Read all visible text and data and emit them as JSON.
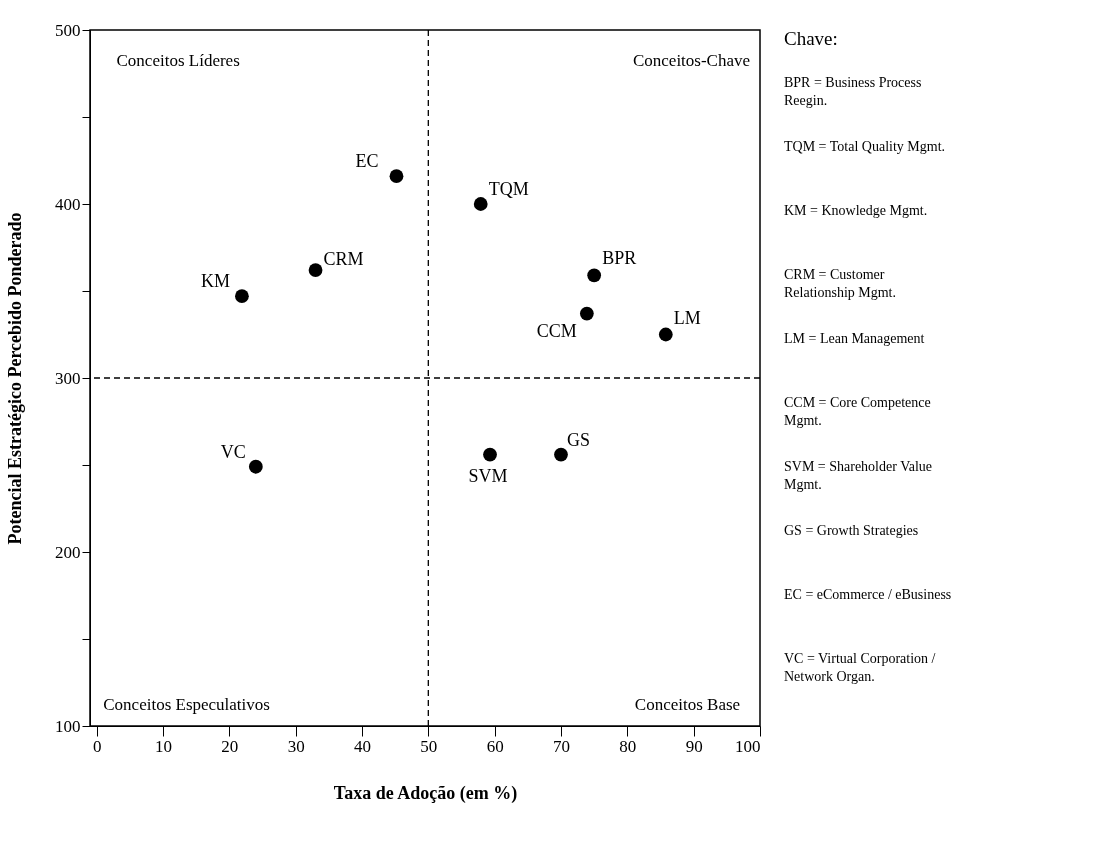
{
  "chart_data": {
    "type": "scatter",
    "xlabel": "Taxa de Adoção (em %)",
    "ylabel": "Potencial Estratégico Percebido Ponderado",
    "x": [
      45.2,
      57.9,
      33,
      21.9,
      75,
      73.9,
      85.8,
      24,
      59.3,
      70
    ],
    "values": [
      416,
      400,
      362,
      347,
      359,
      337,
      325,
      249,
      256,
      256
    ],
    "value_labels": [
      "EC",
      "TQM",
      "CRM",
      "KM",
      "BPR",
      "CCM",
      "LM",
      "VC",
      "SVM",
      "GS"
    ],
    "color": "#000000",
    "marker": "circle",
    "xlim": [
      -1,
      100
    ],
    "xticks": [
      0,
      10,
      20,
      30,
      40,
      50,
      60,
      70,
      80,
      90,
      100
    ],
    "ylim": [
      100,
      500
    ],
    "yticks": [
      100,
      {
        "value": 150,
        "label": null
      },
      200,
      {
        "value": 250,
        "label": null
      },
      300,
      {
        "value": 350,
        "label": null
      },
      400,
      {
        "value": 450,
        "label": null
      },
      500
    ],
    "grid": false,
    "ref_lines": [
      {
        "axis": "x",
        "value": 50,
        "label": null,
        "line_style": "dashed",
        "color": "#000000"
      },
      {
        "axis": "y",
        "value": 300,
        "label": null,
        "line_style": "dashed",
        "color": "#000000"
      }
    ],
    "annotations": [
      "Conceitos Líderes",
      "Conceitos-Chave",
      "Conceitos Especulativos",
      "Conceitos Base",
      "Chave:",
      "BPR = Business Process Reegin.",
      "TQM = Total Quality Mgmt.",
      "KM = Knowledge Mgmt.",
      "CRM = Customer Relationship Mgmt.",
      "LM = Lean Management",
      "CCM = Core Competence Mgmt.",
      "SVM = Shareholder Value Mgmt.",
      "GS = Growth Strategies",
      "EC = eCommerce / eBusiness",
      "VC = Virtual Corporation / Network Organ."
    ]
  }
}
